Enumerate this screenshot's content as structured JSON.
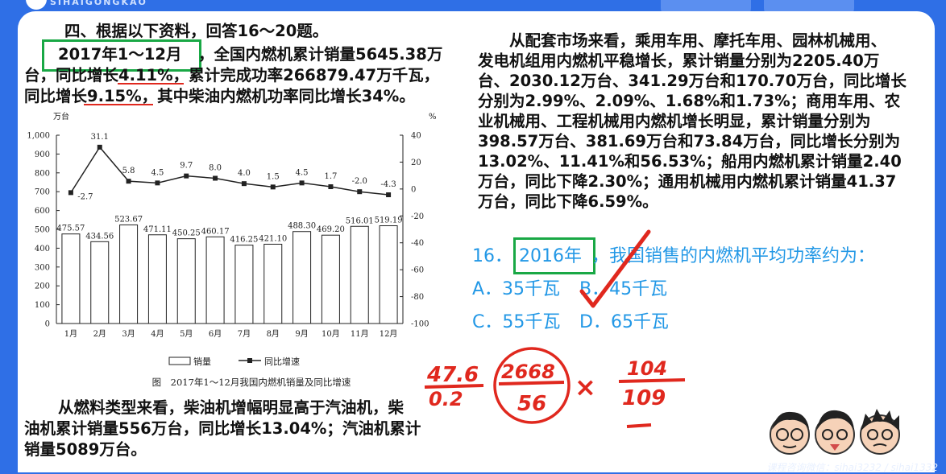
{
  "header": {
    "logo_text": "SIHAIGONGKAO"
  },
  "material": {
    "intro": "四、根据以下资料，回答16～20题。",
    "p1_l1_prefix": "2017年1～12月",
    "p1_l1_rest": "，全国内燃机累计销量5645.38万",
    "p1_l2": "台，同比增长4.11%，累计完成功率266879.47万千瓦，",
    "p1_l3": "同比增长9.15%，其中柴油内燃机功率同比增长34%。",
    "p2_l1": "从燃料类型来看，柴油机增幅明显高于汽油机，柴",
    "p2_l2": "油机累计销量556万台，同比增长13.04%；汽油机累计",
    "p2_l3": "销量5089万台。",
    "right_lines": [
      "从配套市场来看，乘用车用、摩托车用、园林机械用、",
      "发电机组用内燃机平稳增长，累计销量分别为2205.40万",
      "台、2030.12万台、341.29万台和170.70万台，同比增长",
      "分别为2.99%、2.09%、1.68%和1.73%；商用车用、农",
      "业机械用、工程机械用内燃机增长明显，累计销量分别为",
      "398.57万台、381.69万台和73.84万台，同比增长分别为",
      "13.02%、11.41%和56.53%；船用内燃机累计销量2.40",
      "万台，同比下降2.30%；通用机械用内燃机累计销量41.37",
      "万台，同比下降6.59%。"
    ]
  },
  "question": {
    "number": "16．",
    "year": "2016年",
    "stem": "，我国销售的内燃机平均功率约为：",
    "option_a": "A．35千瓦",
    "option_b": "B．45千瓦",
    "option_c": "C．55千瓦",
    "option_d": "D．65千瓦"
  },
  "handwriting": {
    "n1": "47.6",
    "n1b": "0.2",
    "n2": "2668",
    "n2b": "56",
    "times": "×",
    "n3": "104",
    "n3b": "109"
  },
  "watermark": "课程咨询微信：sihai3232 / sihai1332",
  "chart_data": {
    "type": "bar",
    "caption": "图　2017年1～12月我国内燃机销量及同比增速",
    "y_left_unit": "万台",
    "y_right_unit": "%",
    "ylim_left": [
      0,
      1000
    ],
    "ylim_right": [
      -100,
      40
    ],
    "y_left_ticks": [
      "0",
      "100",
      "200",
      "300",
      "400",
      "500",
      "600",
      "700",
      "800",
      "900",
      "1,000"
    ],
    "y_right_ticks": [
      "-100",
      "-80",
      "-60",
      "-40",
      "-20",
      "0",
      "20",
      "40"
    ],
    "categories": [
      "1月",
      "2月",
      "3月",
      "4月",
      "5月",
      "6月",
      "7月",
      "8月",
      "9月",
      "10月",
      "11月",
      "12月"
    ],
    "series": [
      {
        "name": "销量",
        "type": "bar",
        "axis": "left",
        "values": [
          475.57,
          434.56,
          523.67,
          471.11,
          450.25,
          460.17,
          416.25,
          421.1,
          488.3,
          469.2,
          516.01,
          519.19
        ],
        "labels": [
          "475.57",
          "434.56",
          "523.67",
          "471.11",
          "450.25",
          "460.17",
          "416.25",
          "421.10",
          "488.30",
          "469.20",
          "516.01",
          "519.19"
        ]
      },
      {
        "name": "同比增速",
        "type": "line",
        "axis": "right",
        "values": [
          -2.7,
          31.1,
          5.8,
          4.5,
          9.7,
          8.0,
          4.0,
          1.5,
          4.5,
          1.7,
          -2.0,
          -4.3
        ],
        "labels": [
          "-2.7",
          "31.1",
          "5.8",
          "4.5",
          "9.7",
          "8.0",
          "4.0",
          "1.5",
          "4.5",
          "1.7",
          "-2.0",
          "-4.3"
        ]
      }
    ],
    "legend_position": "bottom",
    "grid": false
  }
}
